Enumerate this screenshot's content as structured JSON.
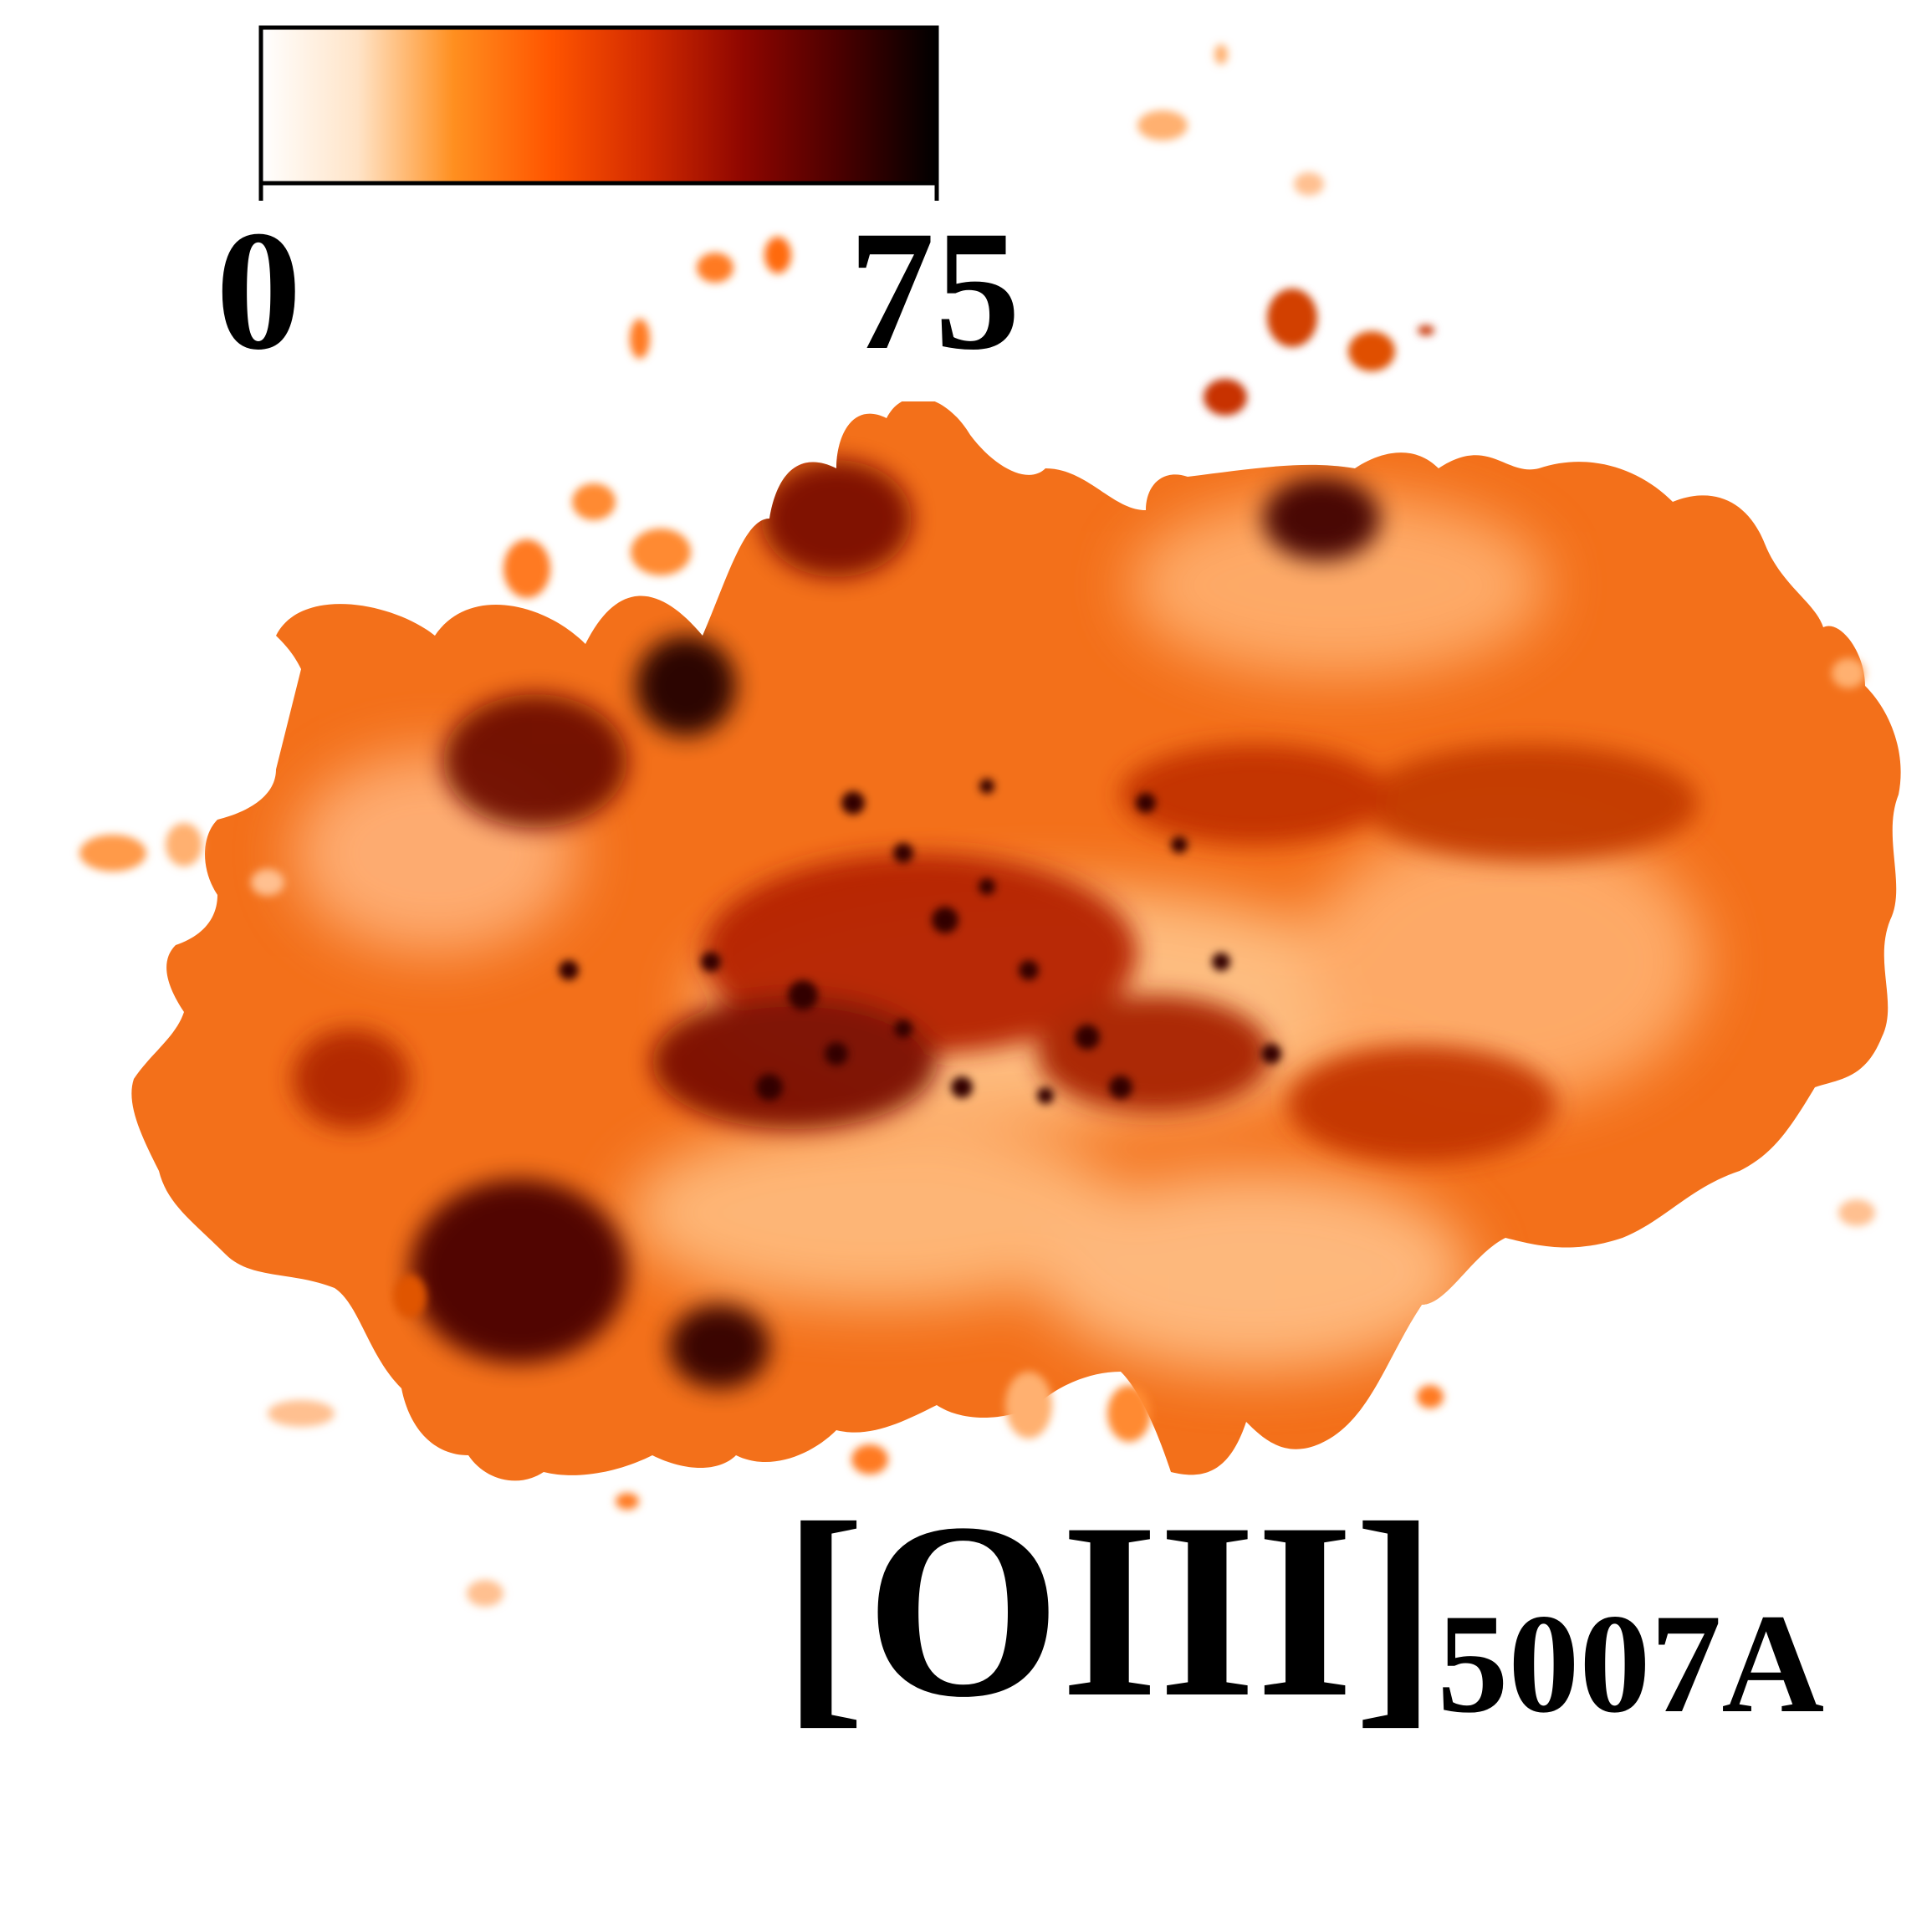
{
  "colorbar": {
    "min_label": "0",
    "max_label": "75",
    "colormap": "gist_heat_r",
    "stops": [
      "#ffffff",
      "#ffe4c8",
      "#ff8f1f",
      "#ff5500",
      "#d22a00",
      "#8e0600",
      "#4a0000",
      "#000000"
    ]
  },
  "emission_line": {
    "ion": "[OIII]",
    "wavelength": "5007A"
  },
  "colors": {
    "background": "#ffffff",
    "text": "#000000",
    "map_light": "#ffc88c",
    "map_mid": "#f56a12",
    "map_dark": "#9a1a00",
    "map_darkest": "#250000"
  }
}
